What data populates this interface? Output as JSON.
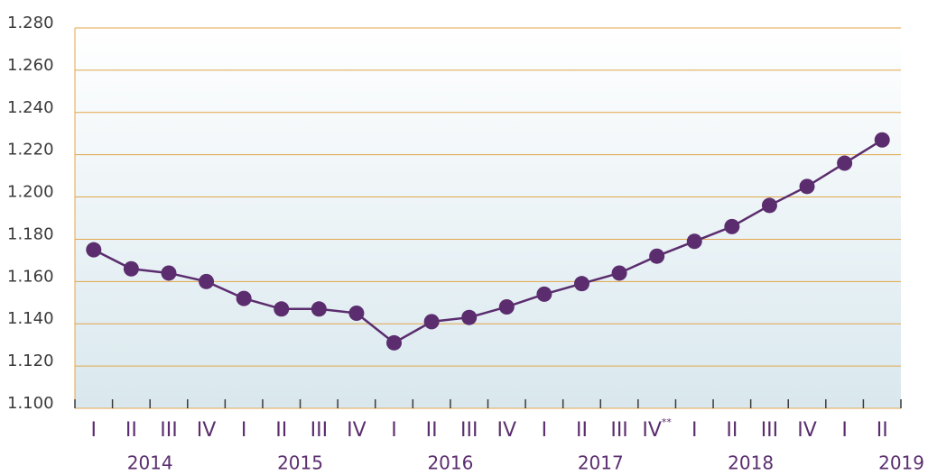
{
  "chart_data": {
    "type": "line",
    "categories": [
      "I",
      "II",
      "III",
      "IV",
      "I",
      "II",
      "III",
      "IV",
      "I",
      "II",
      "III",
      "IV",
      "I",
      "II",
      "III",
      "IV**",
      "I",
      "II",
      "III",
      "IV",
      "I",
      "II"
    ],
    "groups": [
      "2014",
      "2015",
      "2016",
      "2017",
      "2018",
      "2019"
    ],
    "series": [
      {
        "color": "#5b2d6e",
        "values": [
          1175,
          1166,
          1164,
          1160,
          1152,
          1147,
          1147,
          1145,
          1131,
          1141,
          1143,
          1148,
          1154,
          1159,
          1164,
          1172,
          1179,
          1186,
          1196,
          1205,
          1216,
          1227
        ]
      }
    ],
    "ylim": [
      1100,
      1280
    ],
    "yticks": [
      {
        "value": 1100,
        "label": "1.100"
      },
      {
        "value": 1120,
        "label": "1.120"
      },
      {
        "value": 1140,
        "label": "1.140"
      },
      {
        "value": 1160,
        "label": "1.160"
      },
      {
        "value": 1180,
        "label": "1.180"
      },
      {
        "value": 1200,
        "label": "1.200"
      },
      {
        "value": 1220,
        "label": "1.220"
      },
      {
        "value": 1240,
        "label": "1.240"
      },
      {
        "value": 1260,
        "label": "1.260"
      },
      {
        "value": 1280,
        "label": "1.280"
      }
    ],
    "grid": true
  }
}
